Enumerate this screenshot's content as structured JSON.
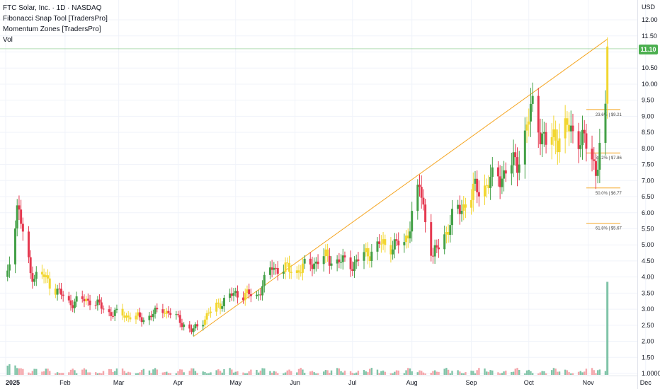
{
  "legend": {
    "title": "FTC Solar, Inc. · 1D · NASDAQ",
    "indicator1": "Fibonacci Snap Tool [TradersPro]",
    "indicator2": "Momentum Zones [TradersPro]",
    "volume": "Vol"
  },
  "axis": {
    "currency": "USD"
  },
  "last_price": "11.10",
  "colors": {
    "up": "#43a047",
    "down": "#e53950",
    "neutral": "#f2d630",
    "volume_up": "#80c4a8",
    "volume_down": "#f4a6ab",
    "fib": "#f5a623",
    "trendline": "#f5a623",
    "price_line": "#4caf50"
  },
  "chart_data": {
    "type": "candlestick",
    "symbol": "FTC Solar, Inc.",
    "interval": "1D",
    "exchange": "NASDAQ",
    "y_ticks": [
      "1.0000",
      "1.50",
      "2.00",
      "2.50",
      "3.00",
      "3.50",
      "4.00",
      "4.50",
      "5.00",
      "5.50",
      "6.00",
      "6.50",
      "7.00",
      "7.50",
      "8.00",
      "8.50",
      "9.00",
      "9.50",
      "10.00",
      "10.50",
      "11.00",
      "11.50",
      "12.00"
    ],
    "x_ticks": [
      "2025",
      "Feb",
      "Mar",
      "Apr",
      "May",
      "Jun",
      "Jul",
      "Aug",
      "Sep",
      "Oct",
      "Nov",
      "Dec"
    ],
    "ylim": [
      0.9,
      12.3
    ],
    "close_path": [
      [
        "2025-01-02",
        4.0
      ],
      [
        "2025-01-07",
        6.3
      ],
      [
        "2025-01-14",
        4.1
      ],
      [
        "2025-01-21",
        4.0
      ],
      [
        "2025-02-03",
        3.2
      ],
      [
        "2025-02-14",
        3.3
      ],
      [
        "2025-02-24",
        2.9
      ],
      [
        "2025-03-05",
        2.8
      ],
      [
        "2025-03-14",
        2.7
      ],
      [
        "2025-03-24",
        3.0
      ],
      [
        "2025-04-01",
        2.7
      ],
      [
        "2025-04-08",
        2.3
      ],
      [
        "2025-04-21",
        3.1
      ],
      [
        "2025-05-01",
        3.5
      ],
      [
        "2025-05-12",
        3.4
      ],
      [
        "2025-05-20",
        4.3
      ],
      [
        "2025-06-02",
        4.2
      ],
      [
        "2025-06-16",
        4.6
      ],
      [
        "2025-07-01",
        4.4
      ],
      [
        "2025-07-15",
        5.0
      ],
      [
        "2025-07-28",
        5.0
      ],
      [
        "2025-08-05",
        6.8
      ],
      [
        "2025-08-12",
        4.6
      ],
      [
        "2025-08-22",
        5.8
      ],
      [
        "2025-09-03",
        6.7
      ],
      [
        "2025-09-15",
        7.1
      ],
      [
        "2025-09-25",
        7.6
      ],
      [
        "2025-10-03",
        9.3
      ],
      [
        "2025-10-10",
        8.1
      ],
      [
        "2025-10-20",
        8.6
      ],
      [
        "2025-10-28",
        8.4
      ],
      [
        "2025-11-05",
        7.4
      ],
      [
        "2025-11-10",
        8.9
      ],
      [
        "2025-11-11",
        11.1
      ]
    ],
    "trendline": [
      [
        "2025-04-09",
        2.15
      ],
      [
        "2025-11-11",
        11.4
      ]
    ],
    "fib_levels": [
      {
        "label": "23.6% | $9.21",
        "price": 9.21,
        "from": "2025-10-31"
      },
      {
        "label": "38.2% | $7.86",
        "price": 7.86,
        "from": "2025-10-31"
      },
      {
        "label": "50.0% | $6.77",
        "price": 6.77,
        "from": "2025-10-31"
      },
      {
        "label": "61.8% | $5.67",
        "price": 5.67,
        "from": "2025-10-31"
      }
    ],
    "volume_spike": {
      "date": "2025-11-11",
      "level": 3.85
    },
    "last_close": 11.1,
    "grid": true,
    "legend_position": "top-left"
  }
}
